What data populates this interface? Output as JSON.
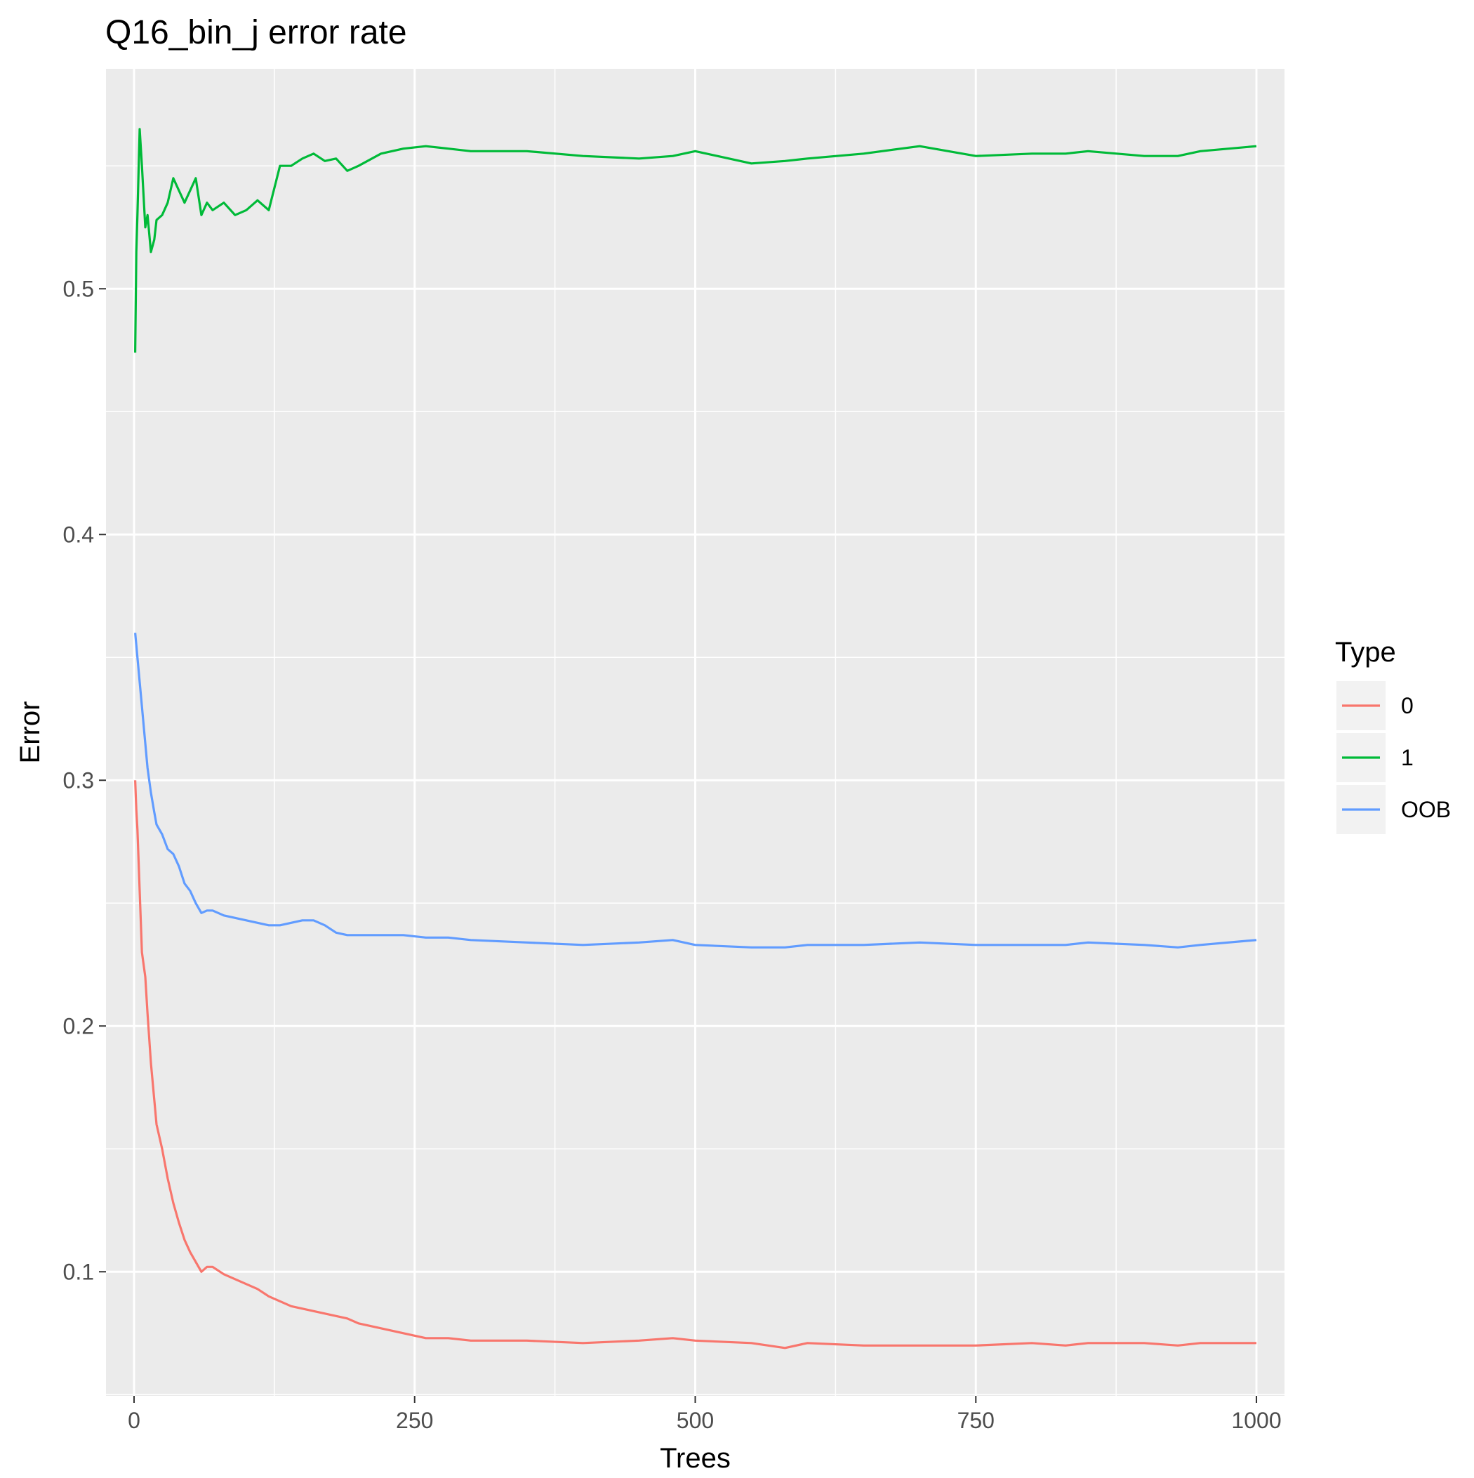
{
  "chart_data": {
    "type": "line",
    "title": "Q16_bin_j error rate",
    "xlabel": "Trees",
    "ylabel": "Error",
    "xlim": [
      -25,
      1025
    ],
    "ylim": [
      0.0495,
      0.5895
    ],
    "x_ticks": [
      0,
      250,
      500,
      750,
      1000
    ],
    "x_tick_labels": [
      "0",
      "250",
      "500",
      "750",
      "1000"
    ],
    "y_ticks": [
      0.1,
      0.2,
      0.3,
      0.4,
      0.5
    ],
    "y_tick_labels": [
      "0.1",
      "0.2",
      "0.3",
      "0.4",
      "0.5"
    ],
    "grid": true,
    "panel_background": "#EBEBEB",
    "legend": {
      "title": "Type",
      "position": "right",
      "entries": [
        "0",
        "1",
        "OOB"
      ]
    },
    "series": [
      {
        "name": "0",
        "color": "#F8766D",
        "x": [
          1,
          2,
          3,
          5,
          7,
          10,
          12,
          15,
          18,
          20,
          25,
          30,
          35,
          40,
          45,
          50,
          55,
          60,
          65,
          70,
          80,
          90,
          100,
          110,
          120,
          130,
          140,
          150,
          160,
          170,
          180,
          190,
          200,
          220,
          240,
          260,
          280,
          300,
          350,
          400,
          450,
          480,
          500,
          550,
          580,
          600,
          650,
          700,
          750,
          800,
          830,
          850,
          900,
          930,
          950,
          1000
        ],
        "values": [
          0.3,
          0.288,
          0.28,
          0.255,
          0.23,
          0.22,
          0.205,
          0.185,
          0.17,
          0.16,
          0.15,
          0.138,
          0.128,
          0.12,
          0.113,
          0.108,
          0.104,
          0.1,
          0.102,
          0.102,
          0.099,
          0.097,
          0.095,
          0.093,
          0.09,
          0.088,
          0.086,
          0.085,
          0.084,
          0.083,
          0.082,
          0.081,
          0.079,
          0.077,
          0.075,
          0.073,
          0.073,
          0.072,
          0.072,
          0.071,
          0.072,
          0.073,
          0.072,
          0.071,
          0.069,
          0.071,
          0.07,
          0.07,
          0.07,
          0.071,
          0.07,
          0.071,
          0.071,
          0.07,
          0.071,
          0.071
        ]
      },
      {
        "name": "1",
        "color": "#00BA38",
        "x": [
          1,
          2,
          3,
          5,
          7,
          10,
          12,
          15,
          18,
          20,
          25,
          30,
          35,
          40,
          45,
          50,
          55,
          60,
          65,
          70,
          80,
          90,
          100,
          110,
          120,
          130,
          140,
          150,
          160,
          170,
          180,
          190,
          200,
          220,
          240,
          260,
          280,
          300,
          350,
          400,
          450,
          480,
          500,
          550,
          580,
          600,
          650,
          700,
          750,
          800,
          830,
          850,
          900,
          930,
          950,
          1000
        ],
        "values": [
          0.474,
          0.515,
          0.53,
          0.565,
          0.55,
          0.525,
          0.53,
          0.515,
          0.52,
          0.528,
          0.53,
          0.535,
          0.545,
          0.54,
          0.535,
          0.54,
          0.545,
          0.53,
          0.535,
          0.532,
          0.535,
          0.53,
          0.532,
          0.536,
          0.532,
          0.55,
          0.55,
          0.553,
          0.555,
          0.552,
          0.553,
          0.548,
          0.55,
          0.555,
          0.557,
          0.558,
          0.557,
          0.556,
          0.556,
          0.554,
          0.553,
          0.554,
          0.556,
          0.551,
          0.552,
          0.553,
          0.555,
          0.558,
          0.554,
          0.555,
          0.555,
          0.556,
          0.554,
          0.554,
          0.556,
          0.558
        ]
      },
      {
        "name": "OOB",
        "color": "#619CFF",
        "x": [
          1,
          2,
          3,
          5,
          7,
          10,
          12,
          15,
          18,
          20,
          25,
          30,
          35,
          40,
          45,
          50,
          55,
          60,
          65,
          70,
          80,
          90,
          100,
          110,
          120,
          130,
          140,
          150,
          160,
          170,
          180,
          190,
          200,
          220,
          240,
          260,
          280,
          300,
          350,
          400,
          450,
          480,
          500,
          550,
          580,
          600,
          650,
          700,
          750,
          800,
          830,
          850,
          900,
          930,
          950,
          1000
        ],
        "values": [
          0.36,
          0.355,
          0.35,
          0.34,
          0.33,
          0.315,
          0.305,
          0.295,
          0.287,
          0.282,
          0.278,
          0.272,
          0.27,
          0.265,
          0.258,
          0.255,
          0.25,
          0.246,
          0.247,
          0.247,
          0.245,
          0.244,
          0.243,
          0.242,
          0.241,
          0.241,
          0.242,
          0.243,
          0.243,
          0.241,
          0.238,
          0.237,
          0.237,
          0.237,
          0.237,
          0.236,
          0.236,
          0.235,
          0.234,
          0.233,
          0.234,
          0.235,
          0.233,
          0.232,
          0.232,
          0.233,
          0.233,
          0.234,
          0.233,
          0.233,
          0.233,
          0.234,
          0.233,
          0.232,
          0.233,
          0.235
        ]
      }
    ]
  }
}
